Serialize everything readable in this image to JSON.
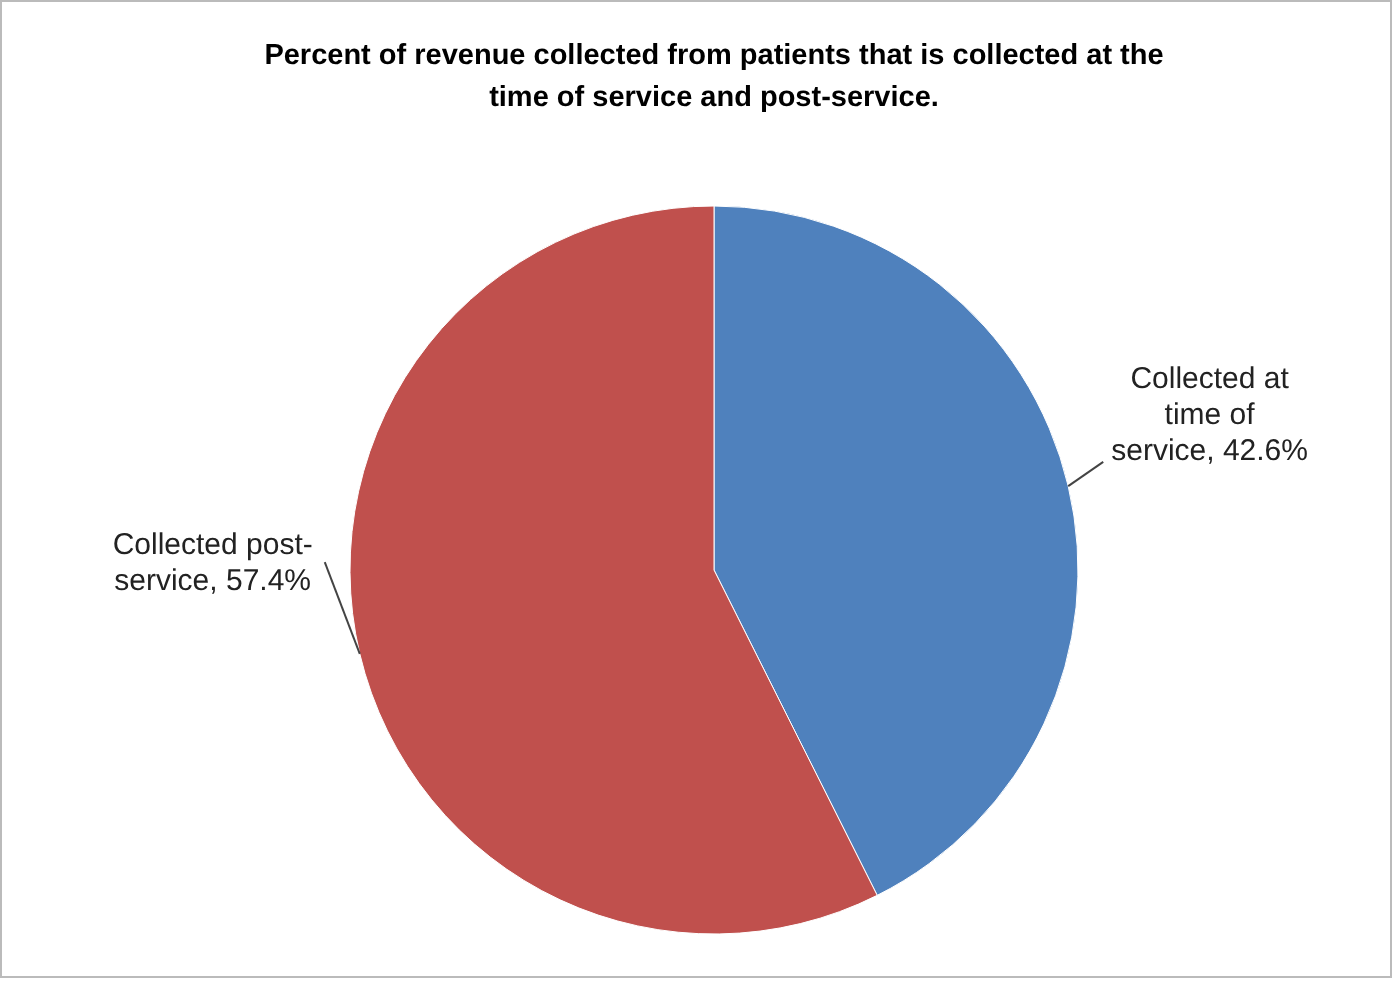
{
  "chart_data": {
    "type": "pie",
    "title": "Percent of revenue collected from patients that is collected at the time of service and post-service.",
    "categories": [
      "Collected at time of service",
      "Collected post-service"
    ],
    "values": [
      42.6,
      57.4
    ],
    "colors": [
      "#4f81bd",
      "#c0504d"
    ],
    "value_labels": [
      "42.6%",
      "57.4%"
    ],
    "legend": false
  }
}
